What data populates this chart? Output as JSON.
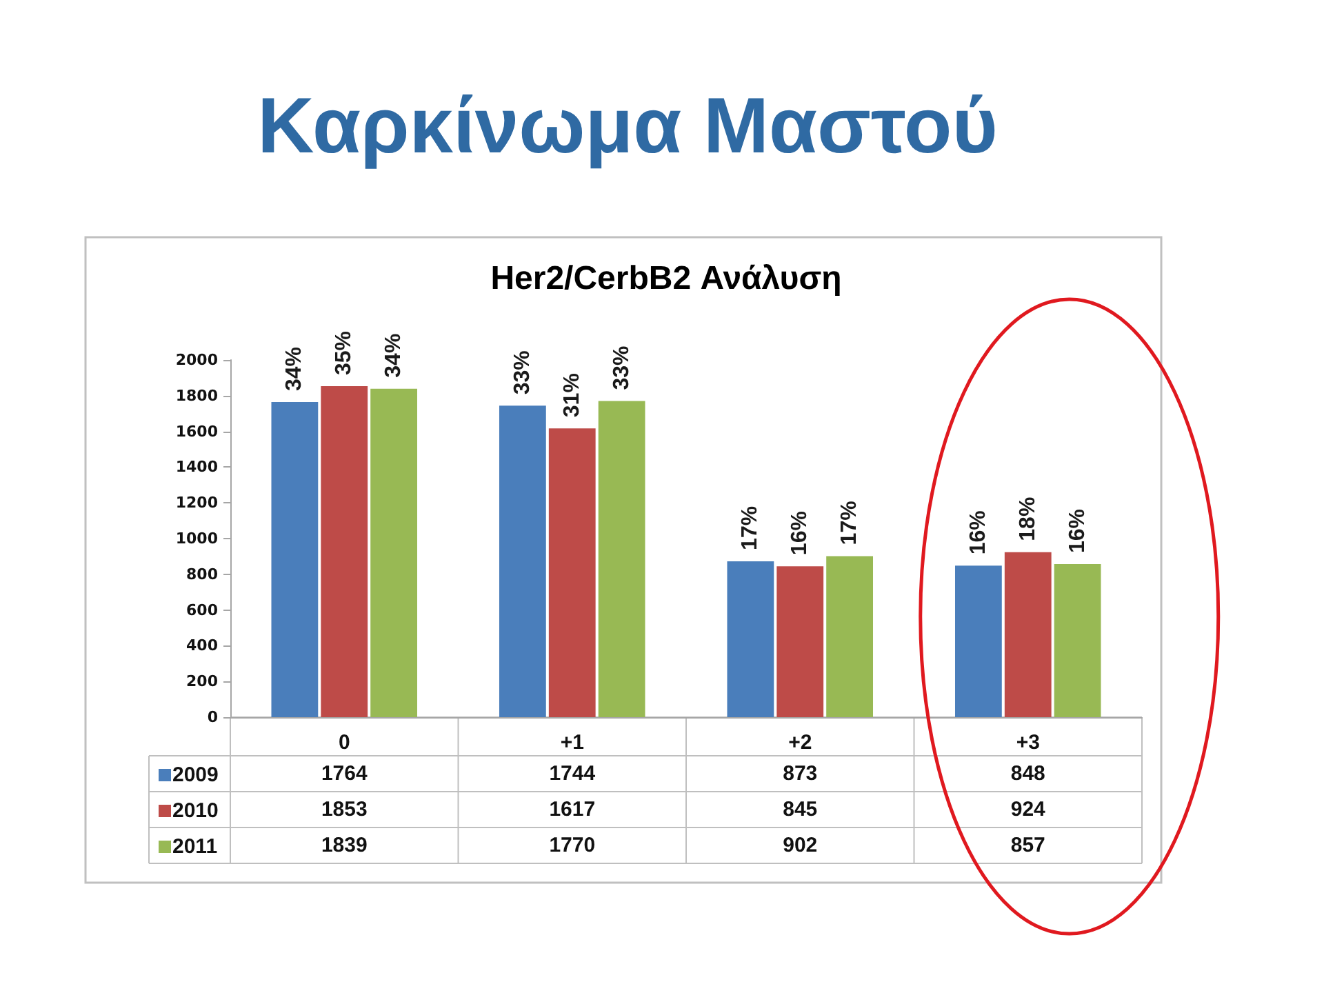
{
  "chart_data": {
    "type": "bar",
    "title": "Καρκίνωμα Μαστού",
    "subtitle": "Her2/CerbB2 Ανάλυση",
    "categories": [
      "0",
      "+1",
      "+2",
      "+3"
    ],
    "series": [
      {
        "name": "2009",
        "color": "#4a7ebb",
        "values": [
          1764,
          1744,
          873,
          848
        ]
      },
      {
        "name": "2010",
        "color": "#be4b48",
        "values": [
          1853,
          1617,
          845,
          924
        ]
      },
      {
        "name": "2011",
        "color": "#98b954",
        "values": [
          1839,
          1770,
          902,
          857
        ]
      }
    ],
    "annotations": [
      "34%",
      "33%",
      "17%",
      "16%",
      "35%",
      "31%",
      "16%",
      "18%",
      "34%",
      "33%",
      "17%",
      "16%"
    ],
    "ylim": [
      0,
      2000
    ],
    "yticks": [
      0,
      200,
      400,
      600,
      800,
      1000,
      1200,
      1400,
      1600,
      1800,
      2000
    ],
    "grid": false,
    "legend": "bottom left",
    "data_labels": true
  }
}
